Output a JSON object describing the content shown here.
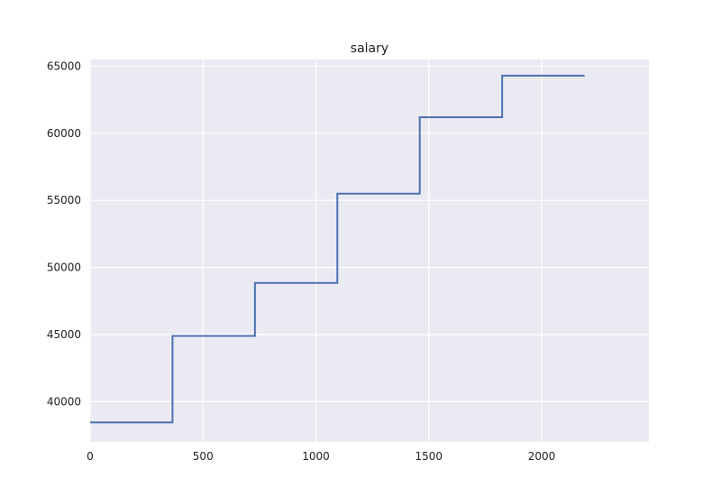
{
  "chart_data": {
    "type": "line",
    "title": "salary",
    "xlabel": "",
    "ylabel": "",
    "xlim": [
      0,
      2475
    ],
    "ylim": [
      37000,
      65500
    ],
    "xticks": [
      0,
      500,
      1000,
      1500,
      2000
    ],
    "yticks": [
      40000,
      45000,
      50000,
      55000,
      60000,
      65000
    ],
    "grid": true,
    "colors": {
      "background": "#eaeaf2",
      "grid": "#ffffff",
      "series": "#4c72b0"
    },
    "series": [
      {
        "step": "post",
        "x": [
          0,
          365,
          730,
          1095,
          1460,
          1825,
          2190
        ],
        "y": [
          38450,
          44900,
          48850,
          55500,
          61200,
          64300,
          64300
        ]
      }
    ]
  }
}
